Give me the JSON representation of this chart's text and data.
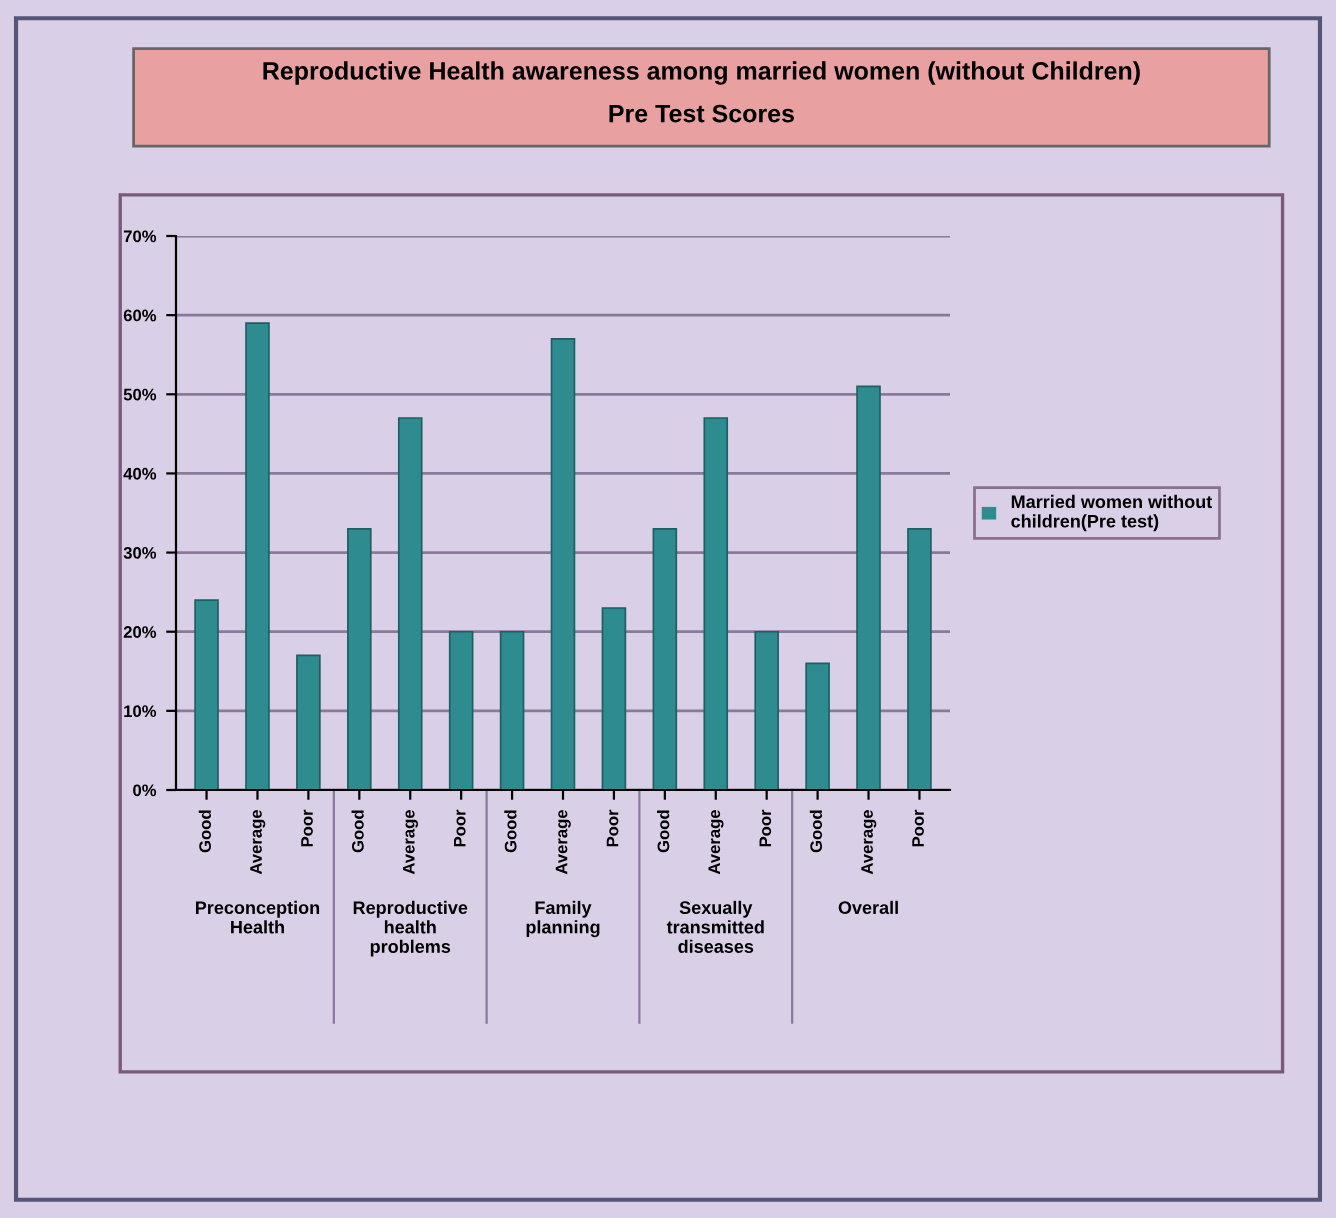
{
  "chart_data": {
    "type": "bar",
    "title": "Reproductive Health awareness among married women (without Children)",
    "subtitle": "Pre Test Scores",
    "categories": [
      "Good",
      "Average",
      "Poor",
      "Good",
      "Average",
      "Poor",
      "Good",
      "Average",
      "Poor",
      "Good",
      "Average",
      "Poor",
      "Good",
      "Average",
      "Poor"
    ],
    "series": [
      {
        "name": "Married women without children(Pre test)",
        "color": "#2e8b8f",
        "values": [
          24,
          59,
          17,
          33,
          47,
          20,
          20,
          57,
          23,
          33,
          47,
          20,
          16,
          51,
          33
        ]
      }
    ],
    "annotations": [
      "Preconception Health",
      "Reproductive health problems",
      "Family planning",
      "Sexually transmitted diseases",
      "Overall"
    ],
    "ylim": [
      0,
      70
    ],
    "yticks": [
      {
        "value": 0,
        "label": "0%"
      },
      {
        "value": 10,
        "label": "10%"
      },
      {
        "value": 20,
        "label": "20%"
      },
      {
        "value": 30,
        "label": "30%"
      },
      {
        "value": 40,
        "label": "40%"
      },
      {
        "value": 50,
        "label": "50%"
      },
      {
        "value": 60,
        "label": "60%"
      },
      {
        "value": 70,
        "label": "70%"
      }
    ],
    "grid": "y",
    "legend": "right"
  }
}
